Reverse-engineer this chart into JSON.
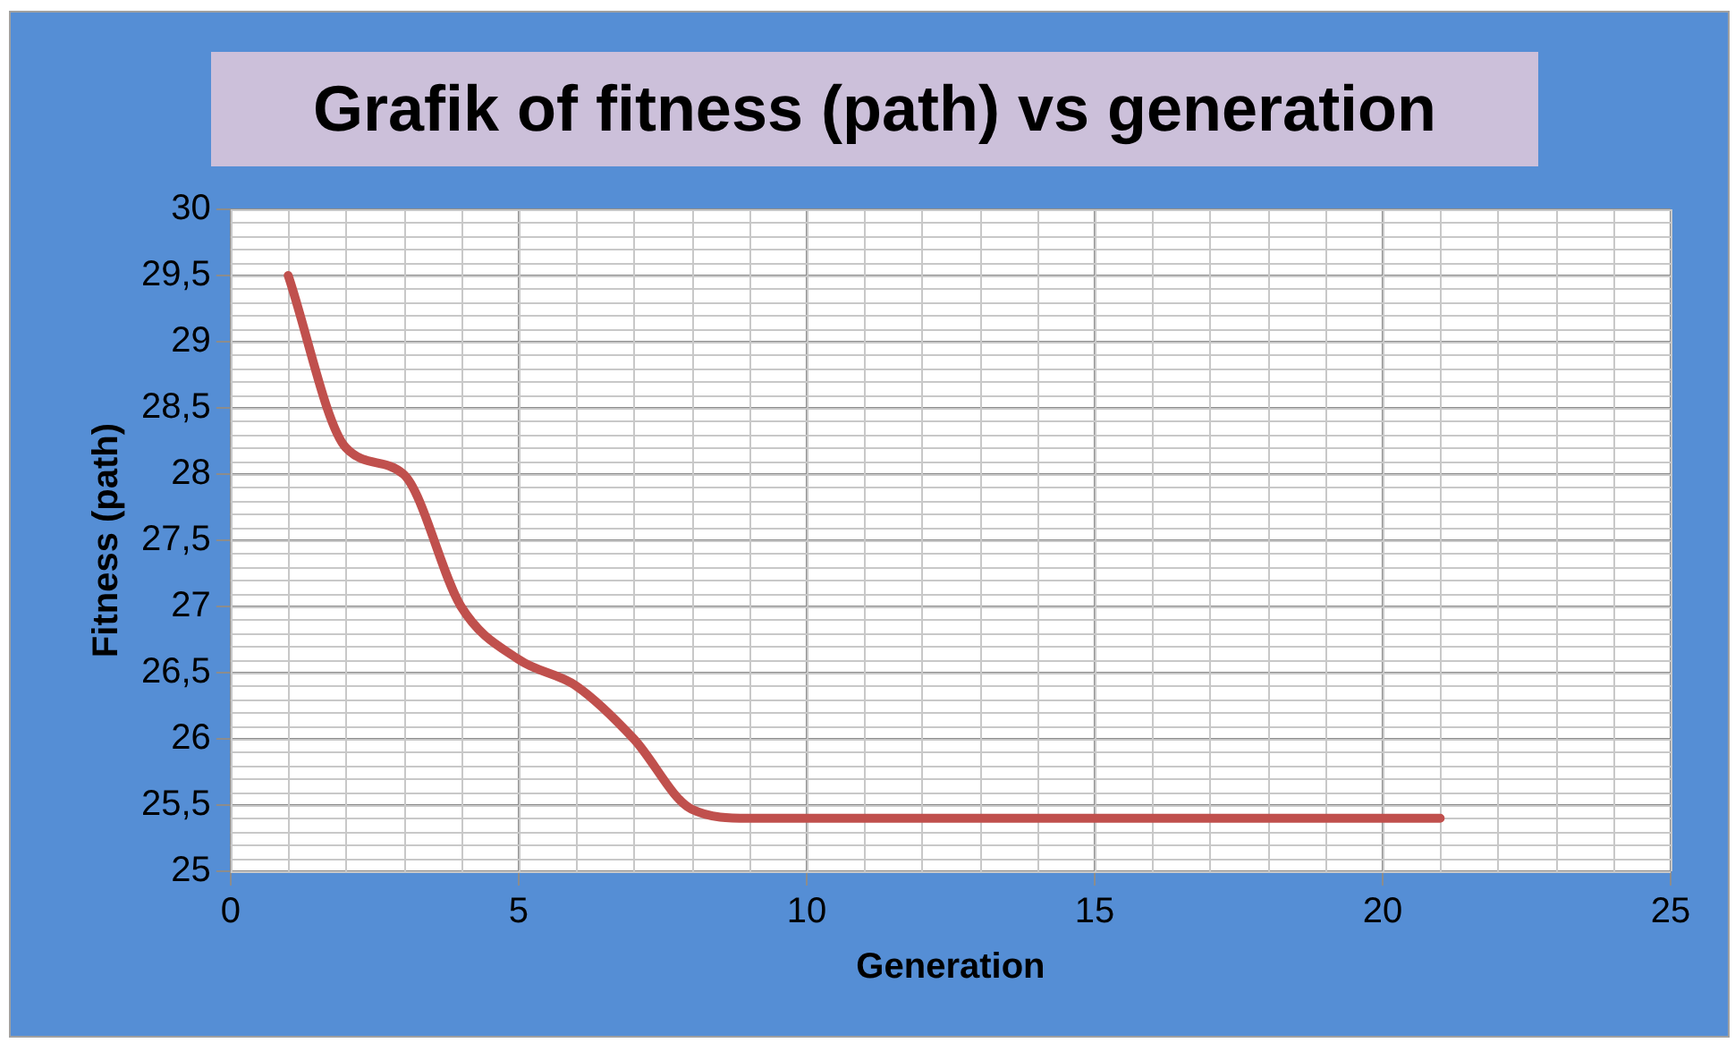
{
  "chart_data": {
    "type": "line",
    "title": "Grafik of fitness (path) vs generation",
    "xlabel": "Generation",
    "ylabel": "Fitness (path)",
    "x": [
      1,
      2,
      3,
      4,
      5,
      6,
      7,
      8,
      9,
      10,
      11,
      12,
      13,
      14,
      15,
      16,
      17,
      18,
      19,
      20,
      21
    ],
    "series": [
      {
        "color": "#c0504d",
        "values": [
          29.5,
          28.2,
          28.0,
          27.0,
          26.6,
          26.4,
          26.0,
          25.47,
          25.4,
          25.4,
          25.4,
          25.4,
          25.4,
          25.4,
          25.4,
          25.4,
          25.4,
          25.4,
          25.4,
          25.4,
          25.4
        ]
      }
    ],
    "xlim": [
      0,
      25
    ],
    "xticks": [
      0,
      5,
      10,
      15,
      20,
      25
    ],
    "ylim": [
      25,
      30
    ],
    "yticks": [
      25,
      {
        "value": 25.5,
        "label": "25,5"
      },
      26,
      {
        "value": 26.5,
        "label": "26,5"
      },
      27,
      {
        "value": 27.5,
        "label": "27,5"
      },
      28,
      {
        "value": 28.5,
        "label": "28,5"
      },
      29,
      {
        "value": 29.5,
        "label": "29,5"
      },
      30
    ],
    "grid": true,
    "legend": false,
    "marker": "none",
    "line_style": "solid"
  }
}
